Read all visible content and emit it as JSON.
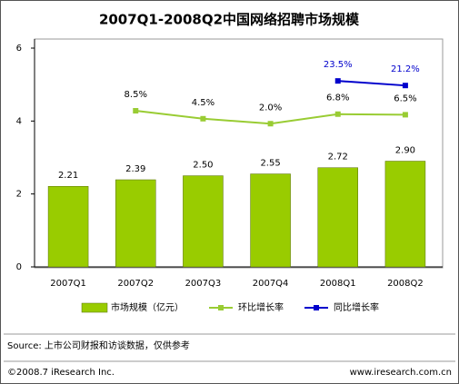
{
  "chart_data": {
    "type": "bar",
    "title": "2007Q1-2008Q2中国网络招聘市场规模",
    "categories": [
      "2007Q1",
      "2007Q2",
      "2007Q3",
      "2007Q4",
      "2008Q1",
      "2008Q2"
    ],
    "series": [
      {
        "name": "市场规模（亿元）",
        "type": "bar",
        "color": "#99cc00",
        "values": [
          2.21,
          2.39,
          2.5,
          2.55,
          2.72,
          2.9
        ],
        "value_labels": [
          "2.21",
          "2.39",
          "2.50",
          "2.55",
          "2.72",
          "2.90"
        ]
      },
      {
        "name": "环比增长率",
        "type": "line",
        "axis": "y2",
        "color": "#99cc33",
        "values": [
          null,
          8.5,
          4.5,
          2.0,
          6.8,
          6.5
        ],
        "value_labels": [
          null,
          "8.5%",
          "4.5%",
          "2.0%",
          "6.8%",
          "6.5%"
        ]
      },
      {
        "name": "同比增长率",
        "type": "line",
        "axis": "y2",
        "color": "#0000cc",
        "values": [
          null,
          null,
          null,
          null,
          23.5,
          21.2
        ],
        "value_labels": [
          null,
          null,
          null,
          null,
          "23.5%",
          "21.2%"
        ]
      }
    ],
    "ylim": [
      0,
      6
    ],
    "yticks": [
      0,
      2,
      4,
      6
    ],
    "y2lim": [
      -70,
      40
    ],
    "grid": false
  },
  "footer": {
    "source": "Source: 上市公司财报和访谈数据，仅供参考",
    "copyright": "©2008.7 iResearch Inc.",
    "url": "www.iresearch.com.cn"
  }
}
